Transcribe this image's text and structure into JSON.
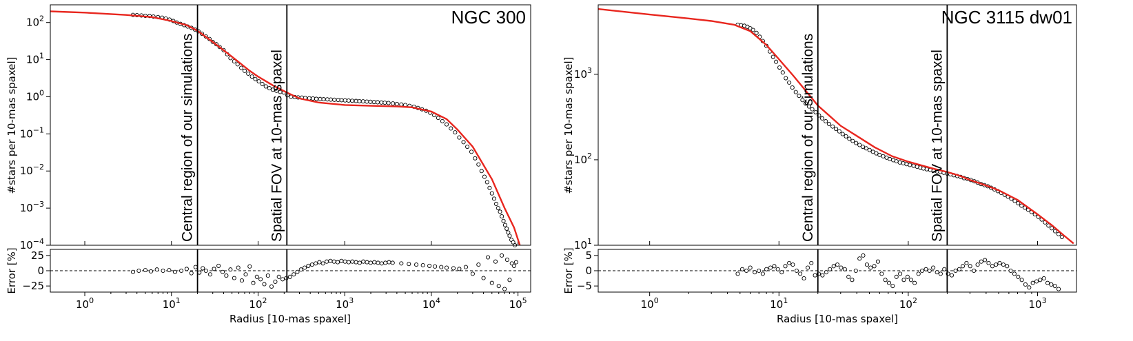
{
  "colors": {
    "fit": "#e8261e",
    "points": "#000000",
    "background": "#ffffff"
  },
  "chart_data": [
    {
      "type": "scatter",
      "title": "NGC 300",
      "xlabel": "Radius [10-mas spaxel]",
      "ylabel": "#stars per 10-mas spaxel]",
      "residual_ylabel": "Error [%]",
      "xscale": "log",
      "yscale": "log",
      "xlim": [
        0.4,
        140000
      ],
      "ylim": [
        0.0001,
        300
      ],
      "residual_ylim": [
        -35,
        35
      ],
      "xticks": [
        {
          "v": 1,
          "label": "10",
          "exp": "0"
        },
        {
          "v": 10,
          "label": "10",
          "exp": "1"
        },
        {
          "v": 100,
          "label": "10",
          "exp": "2"
        },
        {
          "v": 1000,
          "label": "10",
          "exp": "3"
        },
        {
          "v": 10000,
          "label": "10",
          "exp": "4"
        },
        {
          "v": 100000,
          "label": "10",
          "exp": "5"
        }
      ],
      "yticks": [
        {
          "v": 100,
          "label": "10",
          "exp": "2"
        },
        {
          "v": 10,
          "label": "10",
          "exp": "1"
        },
        {
          "v": 1,
          "label": "10",
          "exp": "0"
        },
        {
          "v": 0.1,
          "label": "10",
          "exp": "−1"
        },
        {
          "v": 0.01,
          "label": "10",
          "exp": "−2"
        },
        {
          "v": 0.001,
          "label": "10",
          "exp": "−3"
        },
        {
          "v": 0.0001,
          "label": "10",
          "exp": "−4"
        }
      ],
      "residual_yticks": [
        {
          "v": 25,
          "label": "25"
        },
        {
          "v": 0,
          "label": "0"
        },
        {
          "v": -25,
          "label": "−25"
        }
      ],
      "vlines": [
        {
          "x": 20,
          "label": "Central region of our simulations"
        },
        {
          "x": 215,
          "label": "Spatial FOV at 10-mas spaxel"
        }
      ],
      "fit": {
        "x": [
          0.4,
          1,
          3,
          6,
          10,
          15,
          20,
          30,
          50,
          80,
          100,
          150,
          215,
          300,
          500,
          1000,
          2000,
          4000,
          6000,
          10000,
          15000,
          20000,
          30000,
          50000,
          70000,
          90000,
          105000
        ],
        "y": [
          200,
          185,
          160,
          140,
          110,
          85,
          60,
          30,
          12,
          5,
          3.5,
          2,
          1.3,
          0.9,
          0.7,
          0.6,
          0.57,
          0.55,
          0.52,
          0.4,
          0.25,
          0.13,
          0.045,
          0.006,
          0.001,
          0.0003,
          0.0001
        ]
      },
      "points": {
        "x": [
          3.6,
          4.0,
          4.5,
          5.0,
          5.6,
          6.2,
          7.0,
          7.8,
          8.6,
          9.5,
          10.5,
          11.5,
          12.7,
          14,
          15.4,
          17,
          18.7,
          20.5,
          22.5,
          25,
          27.5,
          30,
          33,
          36,
          40,
          44,
          48,
          53,
          58,
          64,
          70,
          77,
          85,
          93,
          102,
          112,
          123,
          135,
          148,
          163,
          180,
          198,
          218,
          240,
          265,
          290,
          320,
          350,
          390,
          430,
          470,
          520,
          570,
          630,
          690,
          760,
          840,
          920,
          1010,
          1110,
          1220,
          1350,
          1480,
          1630,
          1800,
          1980,
          2180,
          2400,
          2650,
          2900,
          3200,
          3600,
          4000,
          4500,
          5000,
          5600,
          6300,
          7000,
          7800,
          8700,
          9700,
          10800,
          12000,
          13400,
          15000,
          16800,
          18800,
          21000,
          23500,
          26000,
          29000,
          32000,
          35000,
          38000,
          41000,
          44000,
          47000,
          50000,
          53000,
          56000,
          59000,
          62000,
          65000,
          68000,
          71000,
          74000,
          77000,
          80000,
          84000,
          88000,
          92000
        ],
        "y": [
          160,
          158,
          155,
          152,
          150,
          145,
          140,
          135,
          128,
          120,
          110,
          100,
          92,
          85,
          78,
          72,
          65,
          58,
          50,
          42,
          36,
          30,
          26,
          22,
          18,
          14,
          11,
          9,
          7.5,
          6,
          5,
          4.2,
          3.5,
          3,
          2.6,
          2.2,
          1.9,
          1.7,
          1.55,
          1.45,
          1.35,
          1.3,
          1.1,
          1.0,
          0.98,
          0.96,
          0.95,
          0.93,
          0.91,
          0.9,
          0.88,
          0.87,
          0.86,
          0.85,
          0.84,
          0.83,
          0.82,
          0.81,
          0.8,
          0.79,
          0.78,
          0.77,
          0.76,
          0.75,
          0.74,
          0.73,
          0.72,
          0.71,
          0.7,
          0.69,
          0.68,
          0.66,
          0.64,
          0.62,
          0.6,
          0.57,
          0.54,
          0.5,
          0.46,
          0.42,
          0.37,
          0.32,
          0.27,
          0.22,
          0.18,
          0.14,
          0.11,
          0.08,
          0.06,
          0.045,
          0.033,
          0.022,
          0.015,
          0.01,
          0.007,
          0.005,
          0.0035,
          0.0025,
          0.0018,
          0.0013,
          0.001,
          0.0008,
          0.0006,
          0.00045,
          0.00035,
          0.00028,
          0.00022,
          0.00018,
          0.00014,
          0.00012,
          0.0001
        ]
      },
      "residuals": {
        "x": [
          3.6,
          4.2,
          5,
          5.8,
          6.8,
          8,
          9.4,
          11,
          13,
          15,
          17,
          19,
          21,
          23,
          25,
          28,
          31,
          35,
          39,
          43,
          48,
          53,
          59,
          65,
          72,
          80,
          88,
          97,
          107,
          118,
          130,
          143,
          158,
          174,
          192,
          212,
          234,
          258,
          284,
          313,
          345,
          380,
          420,
          463,
          510,
          562,
          620,
          683,
          753,
          830,
          915,
          1008,
          1111,
          1225,
          1350,
          1488,
          1640,
          1808,
          1993,
          2197,
          2422,
          2670,
          2943,
          3244,
          3576,
          4500,
          5500,
          6700,
          8000,
          9500,
          11000,
          13000,
          15000,
          18000,
          21000,
          25000,
          30000,
          35000,
          40000,
          45000,
          50000,
          55000,
          60000,
          65000,
          70000,
          75000,
          80000,
          85000,
          90000,
          95000
        ],
        "y": [
          -2,
          0,
          1,
          -1,
          2,
          0,
          1,
          -2,
          0,
          3,
          -4,
          6,
          -3,
          4,
          0,
          -6,
          3,
          8,
          -2,
          -8,
          2,
          -12,
          5,
          -16,
          -6,
          7,
          -20,
          -10,
          -14,
          -22,
          -8,
          -26,
          -18,
          -10,
          -14,
          -12,
          -10,
          -6,
          -2,
          2,
          5,
          8,
          10,
          12,
          14,
          12,
          15,
          16,
          15,
          14,
          16,
          15,
          14,
          15,
          14,
          13,
          15,
          14,
          13,
          14,
          13,
          12,
          13,
          14,
          13,
          12,
          11,
          10,
          9,
          8,
          7,
          6,
          5,
          4,
          3,
          6,
          -5,
          10,
          -12,
          22,
          -20,
          15,
          -25,
          25,
          -30,
          18,
          -15,
          12,
          8,
          14
        ]
      }
    },
    {
      "type": "scatter",
      "title": "NGC 3115 dw01",
      "xlabel": "Radius [10-mas spaxel]",
      "ylabel": "#stars per 10-mas spaxel]",
      "residual_ylabel": "Error [%]",
      "xscale": "log",
      "yscale": "log",
      "xlim": [
        0.4,
        2000
      ],
      "ylim": [
        10,
        6500
      ],
      "residual_ylim": [
        -7,
        7
      ],
      "xticks": [
        {
          "v": 1,
          "label": "10",
          "exp": "0"
        },
        {
          "v": 10,
          "label": "10",
          "exp": "1"
        },
        {
          "v": 100,
          "label": "10",
          "exp": "2"
        },
        {
          "v": 1000,
          "label": "10",
          "exp": "3"
        }
      ],
      "yticks": [
        {
          "v": 1000,
          "label": "10",
          "exp": "3"
        },
        {
          "v": 100,
          "label": "10",
          "exp": "2"
        },
        {
          "v": 10,
          "label": "10",
          "exp": "1"
        }
      ],
      "residual_yticks": [
        {
          "v": 5,
          "label": "5"
        },
        {
          "v": 0,
          "label": "0"
        },
        {
          "v": -5,
          "label": "−5"
        }
      ],
      "vlines": [
        {
          "x": 20,
          "label": "Central region of our simulations"
        },
        {
          "x": 200,
          "label": "Spatial FOV at 10-mas spaxel"
        }
      ],
      "fit": {
        "x": [
          0.4,
          1,
          2,
          3,
          4.5,
          6,
          8,
          10,
          13,
          16,
          20,
          25,
          30,
          40,
          55,
          75,
          100,
          130,
          160,
          200,
          250,
          300,
          400,
          500,
          700,
          1000,
          1300,
          1600,
          1900
        ],
        "y": [
          5800,
          5000,
          4500,
          4200,
          3800,
          3200,
          2200,
          1500,
          950,
          650,
          430,
          320,
          250,
          190,
          140,
          110,
          95,
          85,
          78,
          72,
          65,
          58,
          50,
          44,
          34,
          23,
          17,
          13,
          10.5
        ]
      },
      "points": {
        "x": [
          4.8,
          5.1,
          5.4,
          5.7,
          6.0,
          6.3,
          6.7,
          7.1,
          7.5,
          8.0,
          8.5,
          9.0,
          9.5,
          10.1,
          10.7,
          11.3,
          12.0,
          12.7,
          13.5,
          14.3,
          15.2,
          16.1,
          17.1,
          18.1,
          19.2,
          20.4,
          21.6,
          23,
          24.4,
          26,
          27.6,
          29.3,
          31.1,
          33,
          35,
          37.2,
          39.5,
          42,
          44.5,
          47.3,
          50.2,
          53.3,
          56.6,
          60,
          64,
          68,
          72,
          76.5,
          81,
          86,
          91.5,
          97,
          103,
          110,
          117,
          124,
          131,
          139,
          148,
          157,
          167,
          177,
          188,
          200,
          212,
          225,
          239,
          254,
          270,
          287,
          305,
          324,
          344,
          365,
          388,
          412,
          437,
          464,
          493,
          523,
          556,
          590,
          627,
          666,
          707,
          751,
          797,
          846,
          899,
          954,
          1013,
          1076,
          1143,
          1213,
          1288,
          1368,
          1453,
          1543
        ],
        "y": [
          3800,
          3750,
          3700,
          3600,
          3450,
          3300,
          3050,
          2750,
          2450,
          2150,
          1850,
          1600,
          1400,
          1200,
          1050,
          900,
          800,
          700,
          620,
          560,
          500,
          455,
          420,
          390,
          360,
          330,
          305,
          282,
          262,
          245,
          230,
          215,
          200,
          188,
          176,
          166,
          157,
          149,
          142,
          136,
          130,
          124,
          119,
          114,
          110,
          106,
          102,
          99,
          96,
          93,
          91,
          89,
          87,
          85,
          83,
          81,
          79,
          77.5,
          76,
          74.5,
          73,
          72,
          70.5,
          69,
          67.5,
          66,
          64.5,
          63,
          61,
          59.5,
          58,
          56,
          54,
          52,
          50.5,
          49,
          47,
          45,
          43,
          41,
          39,
          37,
          35,
          33,
          31,
          29,
          27.5,
          26,
          24.5,
          23,
          21.5,
          20,
          18.5,
          17,
          15.8,
          14.6,
          13.5,
          12.5
        ]
      },
      "residuals": {
        "x": [
          4.8,
          5.2,
          5.6,
          6,
          6.5,
          7,
          7.5,
          8,
          8.6,
          9.2,
          9.8,
          10.5,
          11.2,
          12,
          12.8,
          13.7,
          14.6,
          15.6,
          16.7,
          17.8,
          19,
          20.3,
          21.7,
          23.2,
          24.8,
          26.5,
          28.3,
          30.2,
          32.3,
          34.5,
          36.8,
          39.3,
          42,
          44.8,
          47.9,
          51.1,
          54.6,
          58.3,
          62.3,
          66.5,
          71,
          75.8,
          81,
          86.5,
          92.4,
          98.7,
          105,
          112,
          120,
          128,
          137,
          146,
          156,
          167,
          178,
          190,
          203,
          217,
          232,
          248,
          264,
          282,
          301,
          322,
          344,
          367,
          392,
          418,
          447,
          477,
          509,
          544,
          581,
          620,
          662,
          707,
          755,
          806,
          861,
          919,
          982,
          1048,
          1119,
          1195,
          1276,
          1363,
          1455
        ],
        "y": [
          -1,
          0.5,
          0,
          1,
          -0.5,
          0,
          -1,
          0.5,
          1,
          1.5,
          0.5,
          -0.5,
          1.5,
          2.5,
          2,
          0,
          -1,
          -2.5,
          1,
          2.5,
          -1.5,
          -1,
          -1.5,
          -0.5,
          0.5,
          1.5,
          2,
          1,
          0.5,
          -2,
          -3,
          0,
          4,
          5,
          2,
          1,
          1.5,
          3,
          -1,
          -3,
          -4,
          -5,
          -2,
          -1,
          -3,
          -2,
          -3,
          -4,
          -1,
          0,
          0.5,
          0,
          1,
          -0.5,
          -1,
          0.5,
          -1,
          -1.5,
          0,
          0.5,
          1.5,
          2.5,
          1.5,
          0,
          2,
          3,
          3.5,
          2.5,
          1.5,
          2,
          2.5,
          2,
          1.5,
          0,
          -1,
          -2,
          -3,
          -4.5,
          -5.5,
          -4,
          -3.5,
          -3,
          -2.5,
          -4,
          -4.5,
          -5,
          -6
        ]
      }
    }
  ]
}
